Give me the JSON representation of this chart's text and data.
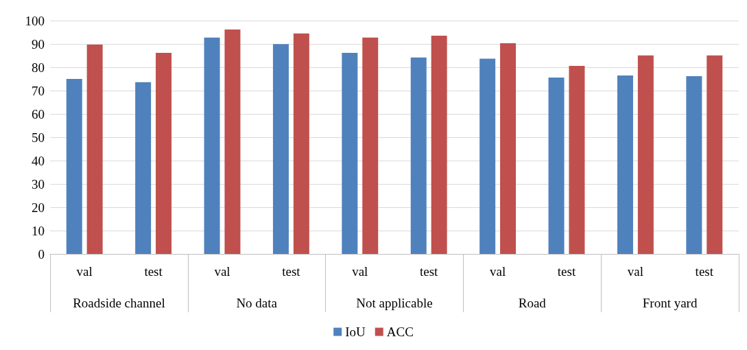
{
  "chart_data": {
    "type": "bar",
    "categories": [
      "val",
      "test",
      "val",
      "test",
      "val",
      "test",
      "val",
      "test",
      "val",
      "test"
    ],
    "annotations": [
      "Roadside channel",
      "No data",
      "Not applicable",
      "Road",
      "Front yard"
    ],
    "series": [
      {
        "name": "IoU",
        "color": "#4f81bd",
        "values": [
          75.0,
          73.6,
          92.7,
          89.9,
          86.2,
          84.2,
          83.7,
          75.6,
          76.5,
          76.2
        ]
      },
      {
        "name": "ACC",
        "color": "#c0504d",
        "values": [
          89.7,
          86.2,
          96.2,
          94.5,
          92.7,
          93.5,
          90.3,
          80.6,
          85.1,
          85.1
        ]
      }
    ],
    "ylim": [
      0,
      100
    ],
    "yticks": [
      0,
      10,
      20,
      30,
      40,
      50,
      60,
      70,
      80,
      90,
      100
    ],
    "grid": "y",
    "legend": "bottom"
  }
}
